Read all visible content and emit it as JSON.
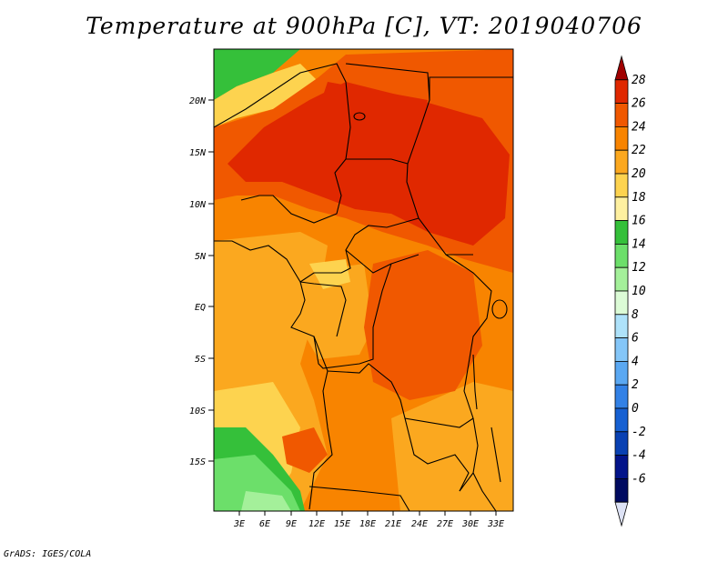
{
  "title": "Temperature at 900hPa [C], VT: 2019040706",
  "credit": "GrADS: IGES/COLA",
  "map": {
    "lat_labels": [
      "20N",
      "15N",
      "10N",
      "5N",
      "EQ",
      "5S",
      "10S",
      "15S"
    ],
    "lon_labels": [
      "3E",
      "6E",
      "9E",
      "12E",
      "15E",
      "18E",
      "21E",
      "24E",
      "27E",
      "30E",
      "33E"
    ]
  },
  "colorbar": {
    "levels": [
      "28",
      "26",
      "24",
      "22",
      "20",
      "18",
      "16",
      "14",
      "12",
      "10",
      "8",
      "6",
      "4",
      "2",
      "0",
      "-2",
      "-4",
      "-6"
    ],
    "colors": [
      "#a00000",
      "#e02800",
      "#f05800",
      "#f88400",
      "#fba81f",
      "#fdd34f",
      "#fef0a0",
      "#35c03a",
      "#6cdf6a",
      "#a4f09a",
      "#dcfbd6",
      "#aee2fa",
      "#84c6f8",
      "#5aa8f2",
      "#3281e6",
      "#1660d2",
      "#0941b3",
      "#03148a",
      "#000a60",
      "#dde2f5"
    ]
  }
}
